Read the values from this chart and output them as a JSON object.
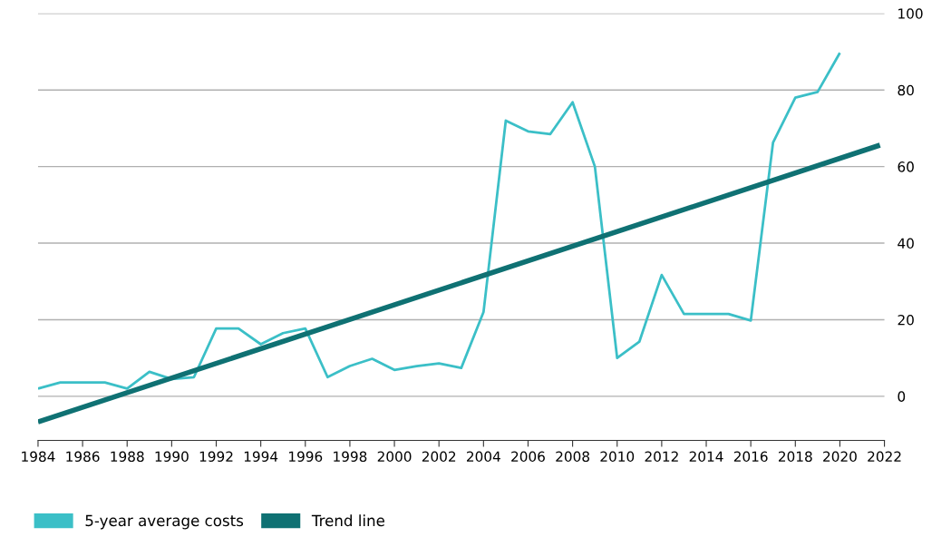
{
  "chart_data": {
    "type": "line",
    "x": [
      1984,
      1985,
      1986,
      1987,
      1988,
      1989,
      1990,
      1991,
      1992,
      1993,
      1994,
      1995,
      1996,
      1997,
      1998,
      1999,
      2000,
      2001,
      2002,
      2003,
      2004,
      2005,
      2006,
      2007,
      2008,
      2009,
      2010,
      2011,
      2012,
      2013,
      2014,
      2015,
      2016,
      2017,
      2018,
      2019,
      2020
    ],
    "series": [
      {
        "name": "5-year average costs",
        "color": "#3bbfc7",
        "values": [
          2,
          3.6,
          3.6,
          3.6,
          2,
          6.4,
          4.5,
          5,
          17.7,
          17.7,
          13.6,
          16.5,
          17.7,
          5,
          7.9,
          9.8,
          6.9,
          7.9,
          8.6,
          7.4,
          22,
          72,
          69.2,
          68.5,
          76.8,
          60,
          10,
          14.3,
          31.7,
          21.5,
          21.5,
          21.5,
          19.8,
          66.3,
          78,
          79.5,
          89.7
        ]
      },
      {
        "name": "Trend line",
        "color": "#0f7173",
        "type": "line",
        "x": [
          1984,
          2021.8
        ],
        "values": [
          -6.7,
          65.6
        ]
      }
    ],
    "xlim": [
      1984,
      2022
    ],
    "xticks": [
      1984,
      1986,
      1988,
      1990,
      1992,
      1994,
      1996,
      1998,
      2000,
      2002,
      2004,
      2006,
      2008,
      2010,
      2012,
      2014,
      2016,
      2018,
      2020,
      2022
    ],
    "ylim": [
      -11.5,
      100
    ],
    "yticks": [
      0,
      20,
      40,
      60,
      80,
      100
    ],
    "grid": "y",
    "legend": "bottom left",
    "marker": "none",
    "line_style": "solid"
  }
}
